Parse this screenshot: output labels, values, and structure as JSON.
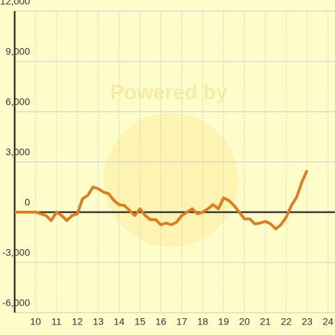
{
  "chart_data": {
    "type": "line",
    "watermark": "Powered by",
    "x": [
      9,
      9.25,
      9.5,
      9.75,
      10,
      10.25,
      10.5,
      10.75,
      11,
      11.25,
      11.5,
      11.75,
      12,
      12.25,
      12.5,
      12.75,
      13,
      13.25,
      13.5,
      13.75,
      14,
      14.25,
      14.5,
      14.75,
      15,
      15.25,
      15.5,
      15.75,
      16,
      16.25,
      16.5,
      16.75,
      17,
      17.25,
      17.5,
      17.75,
      18,
      18.25,
      18.5,
      18.75,
      19,
      19.25,
      19.5,
      19.75,
      20,
      20.25,
      20.5,
      20.75,
      21,
      21.25,
      21.5,
      21.75,
      22,
      22.25,
      22.5,
      22.75,
      23
    ],
    "series": [
      {
        "color": "#e07b20",
        "values": [
          0,
          0,
          0,
          0,
          0,
          -100,
          -200,
          -500,
          0,
          -200,
          -500,
          -200,
          -100,
          800,
          1000,
          1500,
          1400,
          1200,
          1100,
          700,
          450,
          400,
          100,
          -200,
          200,
          -200,
          -450,
          -450,
          -750,
          -650,
          -750,
          -600,
          -200,
          0,
          200,
          -100,
          0,
          200,
          450,
          200,
          850,
          700,
          400,
          0,
          -400,
          -400,
          -700,
          -650,
          -550,
          -700,
          -1000,
          -750,
          -300,
          400,
          900,
          1800,
          2500
        ]
      }
    ],
    "xlim": [
      9,
      24
    ],
    "xticks": [
      10,
      11,
      12,
      13,
      14,
      15,
      16,
      17,
      18,
      19,
      20,
      21,
      22,
      23,
      24
    ],
    "ylim": [
      -6000,
      12000
    ],
    "yticks": [
      {
        "value": -6000,
        "label": "-6,000"
      },
      {
        "value": -3000,
        "label": "-3,000"
      },
      0,
      {
        "value": 3000,
        "label": "3,000"
      },
      {
        "value": 6000,
        "label": "6,000"
      },
      {
        "value": 9000,
        "label": "9,000"
      },
      {
        "value": 12000,
        "label": "12,000"
      }
    ],
    "grid": true
  }
}
